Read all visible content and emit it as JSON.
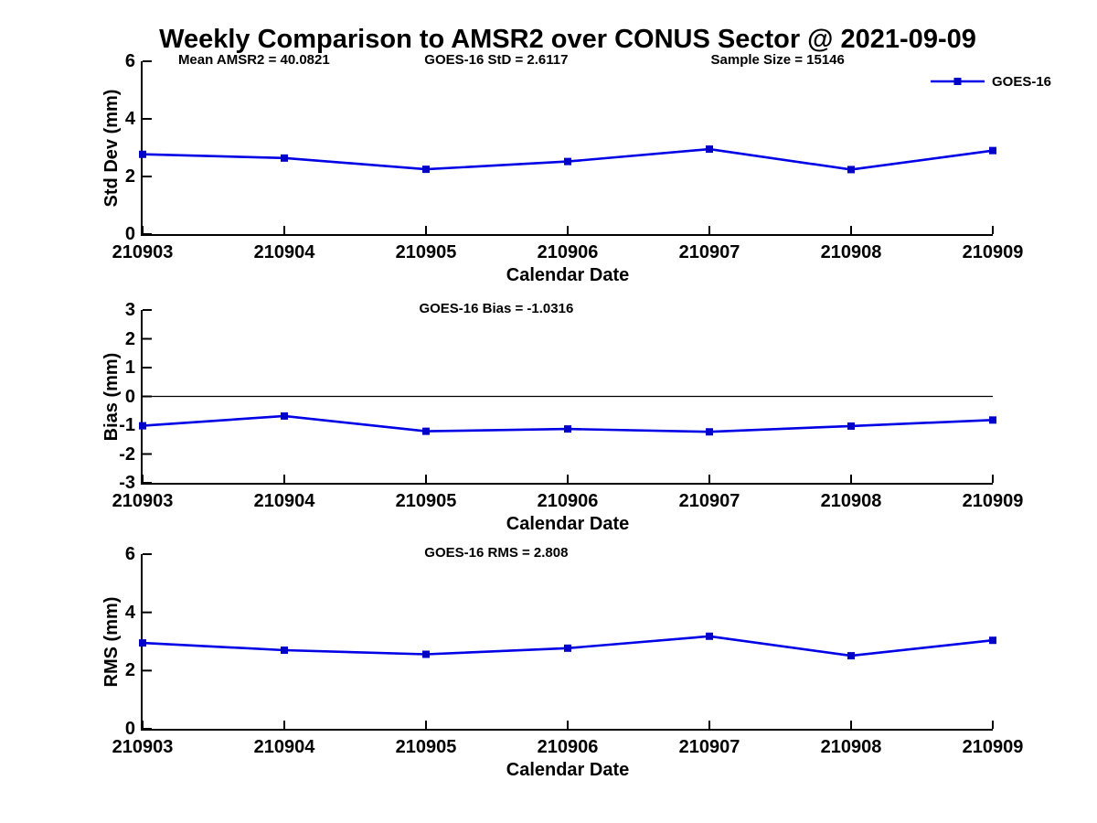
{
  "title": "Weekly Comparison to AMSR2 over CONUS Sector @ 2021-09-09",
  "colors": {
    "line": "#0000E6",
    "marker": "#0000C8",
    "axis": "#000000"
  },
  "chart_data": [
    {
      "type": "line",
      "panel": "std-dev",
      "title": "",
      "ylabel": "Std Dev (mm)",
      "xlabel": "Calendar Date",
      "annotations": [
        "Mean AMSR2 = 40.0821",
        "GOES-16 StD = 2.6117",
        "Sample Size = 15146"
      ],
      "legend": {
        "label": "GOES-16",
        "position": "top-right"
      },
      "categories": [
        "210903",
        "210904",
        "210905",
        "210906",
        "210907",
        "210908",
        "210909"
      ],
      "series": [
        {
          "name": "GOES-16",
          "values": [
            2.77,
            2.64,
            2.25,
            2.52,
            2.95,
            2.24,
            2.9
          ]
        }
      ],
      "ylim": [
        0,
        6
      ],
      "yticks": [
        0,
        2,
        4,
        6
      ],
      "grid": false,
      "zero_line": false
    },
    {
      "type": "line",
      "panel": "bias",
      "title": "",
      "ylabel": "Bias (mm)",
      "xlabel": "Calendar Date",
      "annotations": [
        "GOES-16 Bias  = -1.0316"
      ],
      "legend": null,
      "categories": [
        "210903",
        "210904",
        "210905",
        "210906",
        "210907",
        "210908",
        "210909"
      ],
      "series": [
        {
          "name": "GOES-16",
          "values": [
            -1.02,
            -0.68,
            -1.21,
            -1.13,
            -1.23,
            -1.03,
            -0.82
          ]
        }
      ],
      "ylim": [
        -3,
        3
      ],
      "yticks": [
        -3,
        -2,
        -1,
        0,
        1,
        2,
        3
      ],
      "grid": false,
      "zero_line": true
    },
    {
      "type": "line",
      "panel": "rms",
      "title": "",
      "ylabel": "RMS (mm)",
      "xlabel": "Calendar Date",
      "annotations": [
        "GOES-16 RMS = 2.808"
      ],
      "legend": null,
      "categories": [
        "210903",
        "210904",
        "210905",
        "210906",
        "210907",
        "210908",
        "210909"
      ],
      "series": [
        {
          "name": "GOES-16",
          "values": [
            2.95,
            2.7,
            2.56,
            2.77,
            3.18,
            2.51,
            3.04
          ]
        }
      ],
      "ylim": [
        0,
        6
      ],
      "yticks": [
        0,
        2,
        4,
        6
      ],
      "grid": false,
      "zero_line": false
    }
  ]
}
